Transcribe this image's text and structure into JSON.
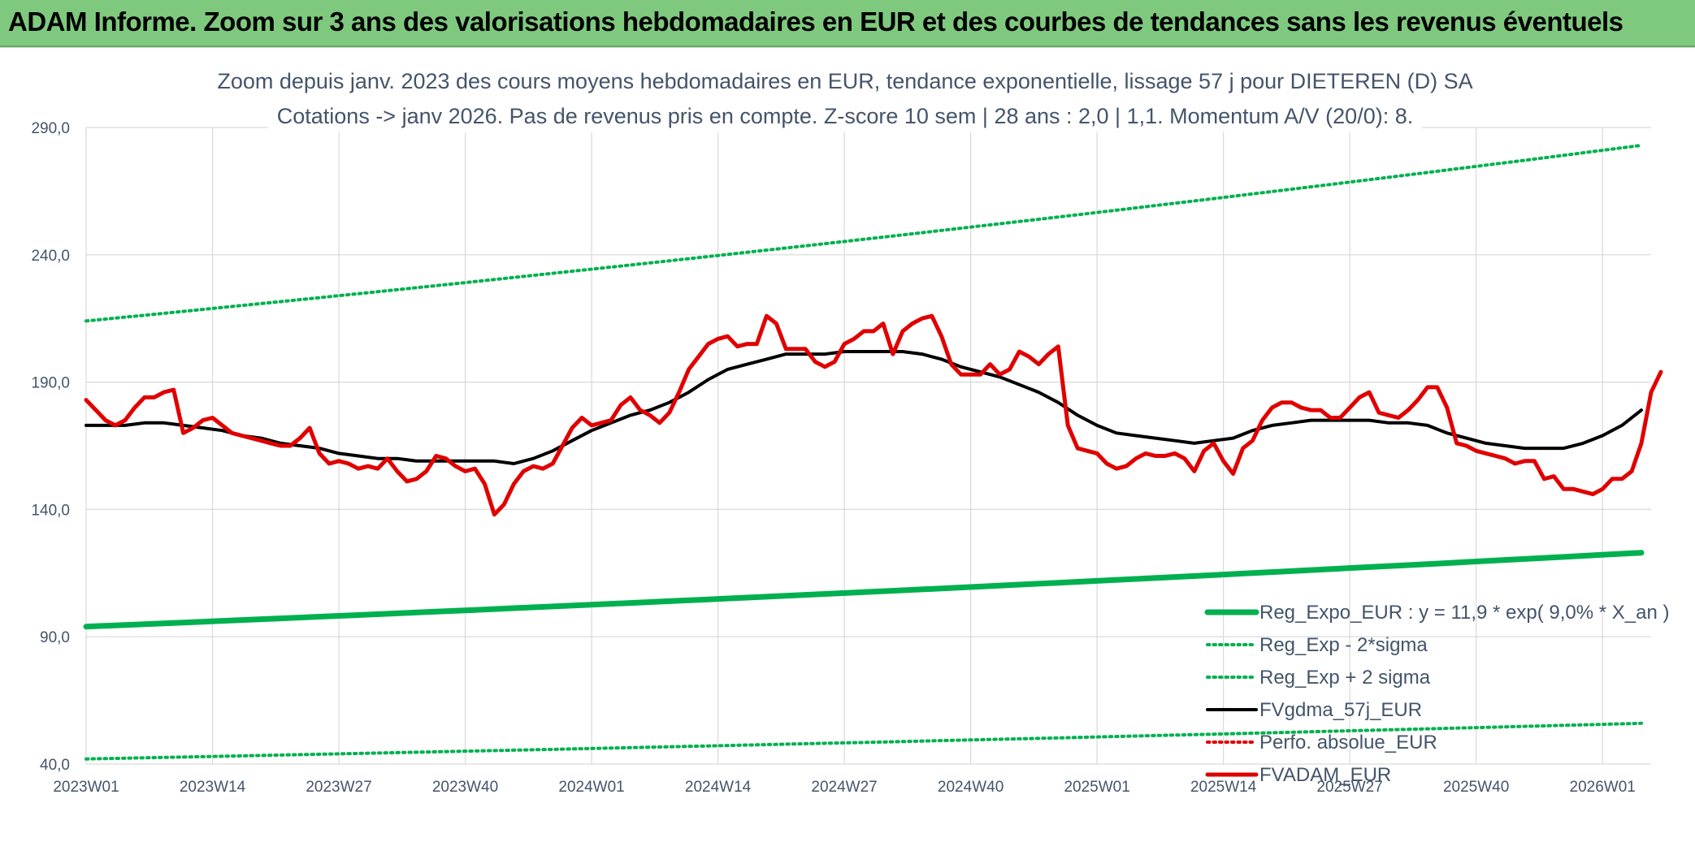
{
  "header": {
    "title": "ADAM Informe. Zoom sur 3 ans des valorisations hebdomadaires en EUR et des courbes de tendances sans les revenus éventuels"
  },
  "chart_data": {
    "type": "line",
    "title": "Zoom depuis janv. 2023 des cours moyens hebdomadaires en EUR, tendance exponentielle, lissage 57 j pour DIETEREN (D) SA",
    "subtitle": "Cotations -> janv 2026. Pas de revenus pris en compte. Z-score 10 sem | 28 ans : 2,0 | 1,1. Momentum A/V (20/0): 8.",
    "xlabel": "",
    "ylabel": "",
    "ylim": [
      40,
      290
    ],
    "yticks": [
      {
        "value": 290,
        "label": "290,0"
      },
      {
        "value": 240,
        "label": "240,0"
      },
      {
        "value": 190,
        "label": "190,0"
      },
      {
        "value": 140,
        "label": "140,0"
      },
      {
        "value": 90,
        "label": "90,0"
      },
      {
        "value": 40,
        "label": "40,0"
      }
    ],
    "x_range": [
      0,
      161
    ],
    "xticks": [
      {
        "index": 0,
        "label": "2023W01"
      },
      {
        "index": 13,
        "label": "2023W14"
      },
      {
        "index": 26,
        "label": "2023W27"
      },
      {
        "index": 39,
        "label": "2023W40"
      },
      {
        "index": 52,
        "label": "2024W01"
      },
      {
        "index": 65,
        "label": "2024W14"
      },
      {
        "index": 78,
        "label": "2024W27"
      },
      {
        "index": 91,
        "label": "2024W40"
      },
      {
        "index": 104,
        "label": "2025W01"
      },
      {
        "index": 117,
        "label": "2025W14"
      },
      {
        "index": 130,
        "label": "2025W27"
      },
      {
        "index": 143,
        "label": "2025W40"
      },
      {
        "index": 156,
        "label": "2026W01"
      }
    ],
    "grid": true,
    "legend_position": "bottom-right",
    "series": [
      {
        "name": "Reg_Expo_EUR : y = 11,9 * exp( 9,0% * X_an )",
        "style": "solid-thick",
        "color": "#00b050",
        "points": [
          [
            0,
            94
          ],
          [
            160,
            123
          ]
        ]
      },
      {
        "name": "Reg_Exp - 2*sigma",
        "style": "dotted",
        "color": "#00b050",
        "points": [
          [
            0,
            42
          ],
          [
            160,
            56
          ]
        ]
      },
      {
        "name": "Reg_Exp + 2 sigma",
        "style": "dotted",
        "color": "#00b050",
        "points": [
          [
            0,
            214
          ],
          [
            160,
            283
          ]
        ]
      },
      {
        "name": "FVgdma_57j_EUR",
        "style": "solid",
        "color": "#000000",
        "points": [
          [
            0,
            173
          ],
          [
            4,
            173
          ],
          [
            6,
            174
          ],
          [
            8,
            174
          ],
          [
            10,
            173
          ],
          [
            12,
            172
          ],
          [
            14,
            171
          ],
          [
            16,
            169
          ],
          [
            18,
            168
          ],
          [
            20,
            166
          ],
          [
            22,
            165
          ],
          [
            24,
            164
          ],
          [
            26,
            162
          ],
          [
            28,
            161
          ],
          [
            30,
            160
          ],
          [
            32,
            160
          ],
          [
            34,
            159
          ],
          [
            36,
            159
          ],
          [
            38,
            159
          ],
          [
            40,
            159
          ],
          [
            42,
            159
          ],
          [
            44,
            158
          ],
          [
            46,
            160
          ],
          [
            48,
            163
          ],
          [
            50,
            167
          ],
          [
            52,
            171
          ],
          [
            54,
            174
          ],
          [
            56,
            177
          ],
          [
            58,
            179
          ],
          [
            60,
            182
          ],
          [
            62,
            186
          ],
          [
            64,
            191
          ],
          [
            66,
            195
          ],
          [
            68,
            197
          ],
          [
            70,
            199
          ],
          [
            72,
            201
          ],
          [
            74,
            201
          ],
          [
            76,
            201
          ],
          [
            78,
            202
          ],
          [
            80,
            202
          ],
          [
            82,
            202
          ],
          [
            84,
            202
          ],
          [
            86,
            201
          ],
          [
            88,
            199
          ],
          [
            90,
            196
          ],
          [
            92,
            194
          ],
          [
            94,
            192
          ],
          [
            96,
            189
          ],
          [
            98,
            186
          ],
          [
            100,
            182
          ],
          [
            102,
            177
          ],
          [
            104,
            173
          ],
          [
            106,
            170
          ],
          [
            108,
            169
          ],
          [
            110,
            168
          ],
          [
            112,
            167
          ],
          [
            114,
            166
          ],
          [
            116,
            167
          ],
          [
            118,
            168
          ],
          [
            120,
            171
          ],
          [
            122,
            173
          ],
          [
            124,
            174
          ],
          [
            126,
            175
          ],
          [
            128,
            175
          ],
          [
            130,
            175
          ],
          [
            132,
            175
          ],
          [
            134,
            174
          ],
          [
            136,
            174
          ],
          [
            138,
            173
          ],
          [
            140,
            170
          ],
          [
            142,
            168
          ],
          [
            144,
            166
          ],
          [
            146,
            165
          ],
          [
            148,
            164
          ],
          [
            150,
            164
          ],
          [
            152,
            164
          ],
          [
            154,
            166
          ],
          [
            156,
            169
          ],
          [
            158,
            173
          ],
          [
            160,
            179
          ]
        ]
      },
      {
        "name": "Perfo. absolue_EUR",
        "style": "dotted",
        "color": "#e00000",
        "points": []
      },
      {
        "name": "FVADAM_EUR",
        "style": "solid-thick",
        "color": "#e00000",
        "points": [
          [
            0,
            183
          ],
          [
            1,
            179
          ],
          [
            2,
            175
          ],
          [
            3,
            173
          ],
          [
            4,
            175
          ],
          [
            5,
            180
          ],
          [
            6,
            184
          ],
          [
            7,
            184
          ],
          [
            8,
            186
          ],
          [
            9,
            187
          ],
          [
            10,
            170
          ],
          [
            11,
            172
          ],
          [
            12,
            175
          ],
          [
            13,
            176
          ],
          [
            14,
            173
          ],
          [
            15,
            170
          ],
          [
            16,
            169
          ],
          [
            17,
            168
          ],
          [
            18,
            167
          ],
          [
            19,
            166
          ],
          [
            20,
            165
          ],
          [
            21,
            165
          ],
          [
            22,
            168
          ],
          [
            23,
            172
          ],
          [
            24,
            162
          ],
          [
            25,
            158
          ],
          [
            26,
            159
          ],
          [
            27,
            158
          ],
          [
            28,
            156
          ],
          [
            29,
            157
          ],
          [
            30,
            156
          ],
          [
            31,
            160
          ],
          [
            32,
            155
          ],
          [
            33,
            151
          ],
          [
            34,
            152
          ],
          [
            35,
            155
          ],
          [
            36,
            161
          ],
          [
            37,
            160
          ],
          [
            38,
            157
          ],
          [
            39,
            155
          ],
          [
            40,
            156
          ],
          [
            41,
            150
          ],
          [
            42,
            138
          ],
          [
            43,
            142
          ],
          [
            44,
            150
          ],
          [
            45,
            155
          ],
          [
            46,
            157
          ],
          [
            47,
            156
          ],
          [
            48,
            158
          ],
          [
            49,
            165
          ],
          [
            50,
            172
          ],
          [
            51,
            176
          ],
          [
            52,
            173
          ],
          [
            53,
            174
          ],
          [
            54,
            175
          ],
          [
            55,
            181
          ],
          [
            56,
            184
          ],
          [
            57,
            179
          ],
          [
            58,
            177
          ],
          [
            59,
            174
          ],
          [
            60,
            178
          ],
          [
            61,
            186
          ],
          [
            62,
            195
          ],
          [
            63,
            200
          ],
          [
            64,
            205
          ],
          [
            65,
            207
          ],
          [
            66,
            208
          ],
          [
            67,
            204
          ],
          [
            68,
            205
          ],
          [
            69,
            205
          ],
          [
            70,
            216
          ],
          [
            71,
            213
          ],
          [
            72,
            203
          ],
          [
            73,
            203
          ],
          [
            74,
            203
          ],
          [
            75,
            198
          ],
          [
            76,
            196
          ],
          [
            77,
            198
          ],
          [
            78,
            205
          ],
          [
            79,
            207
          ],
          [
            80,
            210
          ],
          [
            81,
            210
          ],
          [
            82,
            213
          ],
          [
            83,
            201
          ],
          [
            84,
            210
          ],
          [
            85,
            213
          ],
          [
            86,
            215
          ],
          [
            87,
            216
          ],
          [
            88,
            208
          ],
          [
            89,
            197
          ],
          [
            90,
            193
          ],
          [
            91,
            193
          ],
          [
            92,
            193
          ],
          [
            93,
            197
          ],
          [
            94,
            193
          ],
          [
            95,
            195
          ],
          [
            96,
            202
          ],
          [
            97,
            200
          ],
          [
            98,
            197
          ],
          [
            99,
            201
          ],
          [
            100,
            204
          ],
          [
            101,
            173
          ],
          [
            102,
            164
          ],
          [
            103,
            163
          ],
          [
            104,
            162
          ],
          [
            105,
            158
          ],
          [
            106,
            156
          ],
          [
            107,
            157
          ],
          [
            108,
            160
          ],
          [
            109,
            162
          ],
          [
            110,
            161
          ],
          [
            111,
            161
          ],
          [
            112,
            162
          ],
          [
            113,
            160
          ],
          [
            114,
            155
          ],
          [
            115,
            163
          ],
          [
            116,
            166
          ],
          [
            117,
            159
          ],
          [
            118,
            154
          ],
          [
            119,
            164
          ],
          [
            120,
            167
          ],
          [
            121,
            175
          ],
          [
            122,
            180
          ],
          [
            123,
            182
          ],
          [
            124,
            182
          ],
          [
            125,
            180
          ],
          [
            126,
            179
          ],
          [
            127,
            179
          ],
          [
            128,
            176
          ],
          [
            129,
            176
          ],
          [
            130,
            180
          ],
          [
            131,
            184
          ],
          [
            132,
            186
          ],
          [
            133,
            178
          ],
          [
            134,
            177
          ],
          [
            135,
            176
          ],
          [
            136,
            179
          ],
          [
            137,
            183
          ],
          [
            138,
            188
          ],
          [
            139,
            188
          ],
          [
            140,
            180
          ],
          [
            141,
            166
          ],
          [
            142,
            165
          ],
          [
            143,
            163
          ],
          [
            144,
            162
          ],
          [
            145,
            161
          ],
          [
            146,
            160
          ],
          [
            147,
            158
          ],
          [
            148,
            159
          ],
          [
            149,
            159
          ],
          [
            150,
            152
          ],
          [
            151,
            153
          ],
          [
            152,
            148
          ],
          [
            153,
            148
          ],
          [
            154,
            147
          ],
          [
            155,
            146
          ],
          [
            156,
            148
          ],
          [
            157,
            152
          ],
          [
            158,
            152
          ],
          [
            159,
            155
          ],
          [
            160,
            166
          ],
          [
            161,
            186
          ],
          [
            162,
            194
          ]
        ]
      }
    ]
  }
}
